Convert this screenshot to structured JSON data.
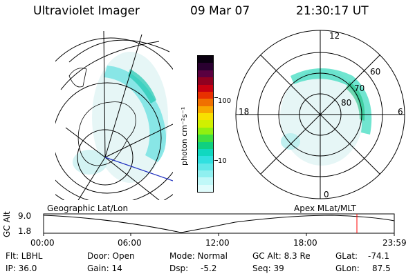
{
  "header": {
    "instrument": "Ultraviolet Imager",
    "date": "09 Mar 07",
    "time": "21:30:17 UT"
  },
  "colorbar": {
    "units": "photon cm⁻²s⁻¹",
    "tick_100": "100",
    "tick_10": "10",
    "colors": [
      "#0a0010",
      "#2a0030",
      "#5a0040",
      "#900020",
      "#c80010",
      "#e83000",
      "#f07000",
      "#f8a800",
      "#f8e000",
      "#d0f000",
      "#90f010",
      "#40e040",
      "#10d080",
      "#10d8c0",
      "#30e0e0",
      "#60e8e8",
      "#90f0f0",
      "#c0f8f8",
      "#e0fcfc"
    ]
  },
  "left_panel": {
    "label": "Geographic Lat/Lon"
  },
  "right_panel": {
    "label": "Apex  MLat/MLT",
    "mlt_top": "12",
    "mlt_left": "18",
    "mlt_right": "6",
    "mlt_bottom": "0",
    "lat_60": "60",
    "lat_70": "70",
    "lat_80": "80"
  },
  "altitude_plot": {
    "ylabel": "GC Alt",
    "y_top": "9.0",
    "y_bottom": "1.8",
    "ticks": [
      "00:00",
      "06:00",
      "12:00",
      "18:00",
      "23:59"
    ],
    "current_marker_color": "#ff0000"
  },
  "footer": {
    "row1": {
      "flt": "Flt: LBHL",
      "door": "Door: Open",
      "mode": "Mode: Normal",
      "gc_alt": "GC Alt: 8.3 Re",
      "glat_label": "GLat:",
      "glat_value": "-74.1"
    },
    "row2": {
      "ip": "IP: 36.0",
      "gain": "Gain: 14",
      "dsp_label": "Dsp:",
      "dsp_value": "-5.2",
      "seq": "Seq: 39",
      "glon_label": "GLon:",
      "glon_value": "87.5"
    }
  }
}
